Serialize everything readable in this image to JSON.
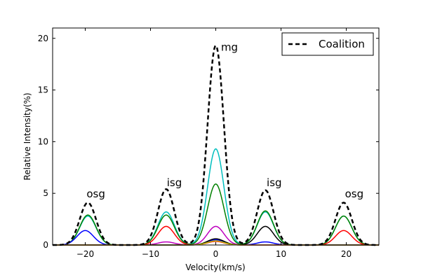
{
  "chart_data": {
    "type": "line",
    "xlabel": "Velocity(km/s)",
    "ylabel": "Relative Intensity(%)",
    "xlim": [
      -25,
      25
    ],
    "ylim": [
      0,
      21
    ],
    "x_ticks": [
      -20,
      -10,
      0,
      10,
      20
    ],
    "y_ticks": [
      0,
      5,
      10,
      15,
      20
    ],
    "grid": false,
    "legend_position": "top-right",
    "legend": [
      {
        "label": "Coalition",
        "style": "dashed",
        "color": "#000000"
      }
    ],
    "annotations": [
      {
        "text": "osg",
        "x": -19.8,
        "y": 4.6
      },
      {
        "text": "isg",
        "x": -7.5,
        "y": 5.7
      },
      {
        "text": "mg",
        "x": 0.8,
        "y": 18.8
      },
      {
        "text": "isg",
        "x": 7.8,
        "y": 5.7
      },
      {
        "text": "osg",
        "x": 19.8,
        "y": 4.6
      }
    ],
    "series": [
      {
        "name": "Coalition",
        "color": "#000000",
        "style": "dashed",
        "sigma": 1.25,
        "peaks": [
          {
            "center": -19.6,
            "amp": 4.1
          },
          {
            "center": -7.6,
            "amp": 5.4
          },
          {
            "center": 0,
            "amp": 19.3
          },
          {
            "center": 7.6,
            "amp": 5.3
          },
          {
            "center": 19.6,
            "amp": 4.1
          }
        ]
      },
      {
        "color": "#00bfbf",
        "style": "solid",
        "sigma": 1.25,
        "peaks": [
          {
            "center": -19.6,
            "amp": 2.8
          },
          {
            "center": -7.6,
            "amp": 3.2
          },
          {
            "center": 0,
            "amp": 9.3
          },
          {
            "center": 7.6,
            "amp": 3.2
          },
          {
            "center": 19.6,
            "amp": 2.8
          }
        ]
      },
      {
        "color": "#008000",
        "style": "solid",
        "sigma": 1.25,
        "peaks": [
          {
            "center": -19.6,
            "amp": 2.9
          },
          {
            "center": -7.6,
            "amp": 2.9
          },
          {
            "center": 0,
            "amp": 5.9
          },
          {
            "center": 7.6,
            "amp": 3.3
          },
          {
            "center": 19.6,
            "amp": 2.8
          }
        ]
      },
      {
        "color": "#0000ff",
        "style": "solid",
        "sigma": 1.25,
        "peaks": [
          {
            "center": -20.0,
            "amp": 1.4
          },
          {
            "center": 0,
            "amp": 0.5
          },
          {
            "center": 7.6,
            "amp": 0.3
          }
        ]
      },
      {
        "color": "#ff0000",
        "style": "solid",
        "sigma": 1.25,
        "peaks": [
          {
            "center": -7.6,
            "amp": 1.8
          },
          {
            "center": 0,
            "amp": 0.35
          },
          {
            "center": 19.6,
            "amp": 1.4
          }
        ]
      },
      {
        "color": "#bf00bf",
        "style": "solid",
        "sigma": 1.25,
        "peaks": [
          {
            "center": -7.6,
            "amp": 0.3
          },
          {
            "center": 0,
            "amp": 1.8
          }
        ]
      },
      {
        "color": "#000000",
        "style": "solid",
        "sigma": 1.25,
        "peaks": [
          {
            "center": 0,
            "amp": 0.6
          },
          {
            "center": 7.6,
            "amp": 1.8
          }
        ]
      },
      {
        "color": "#bfbf00",
        "style": "solid",
        "sigma": 1.25,
        "peaks": [
          {
            "center": 0,
            "amp": 0.4
          }
        ]
      }
    ]
  }
}
